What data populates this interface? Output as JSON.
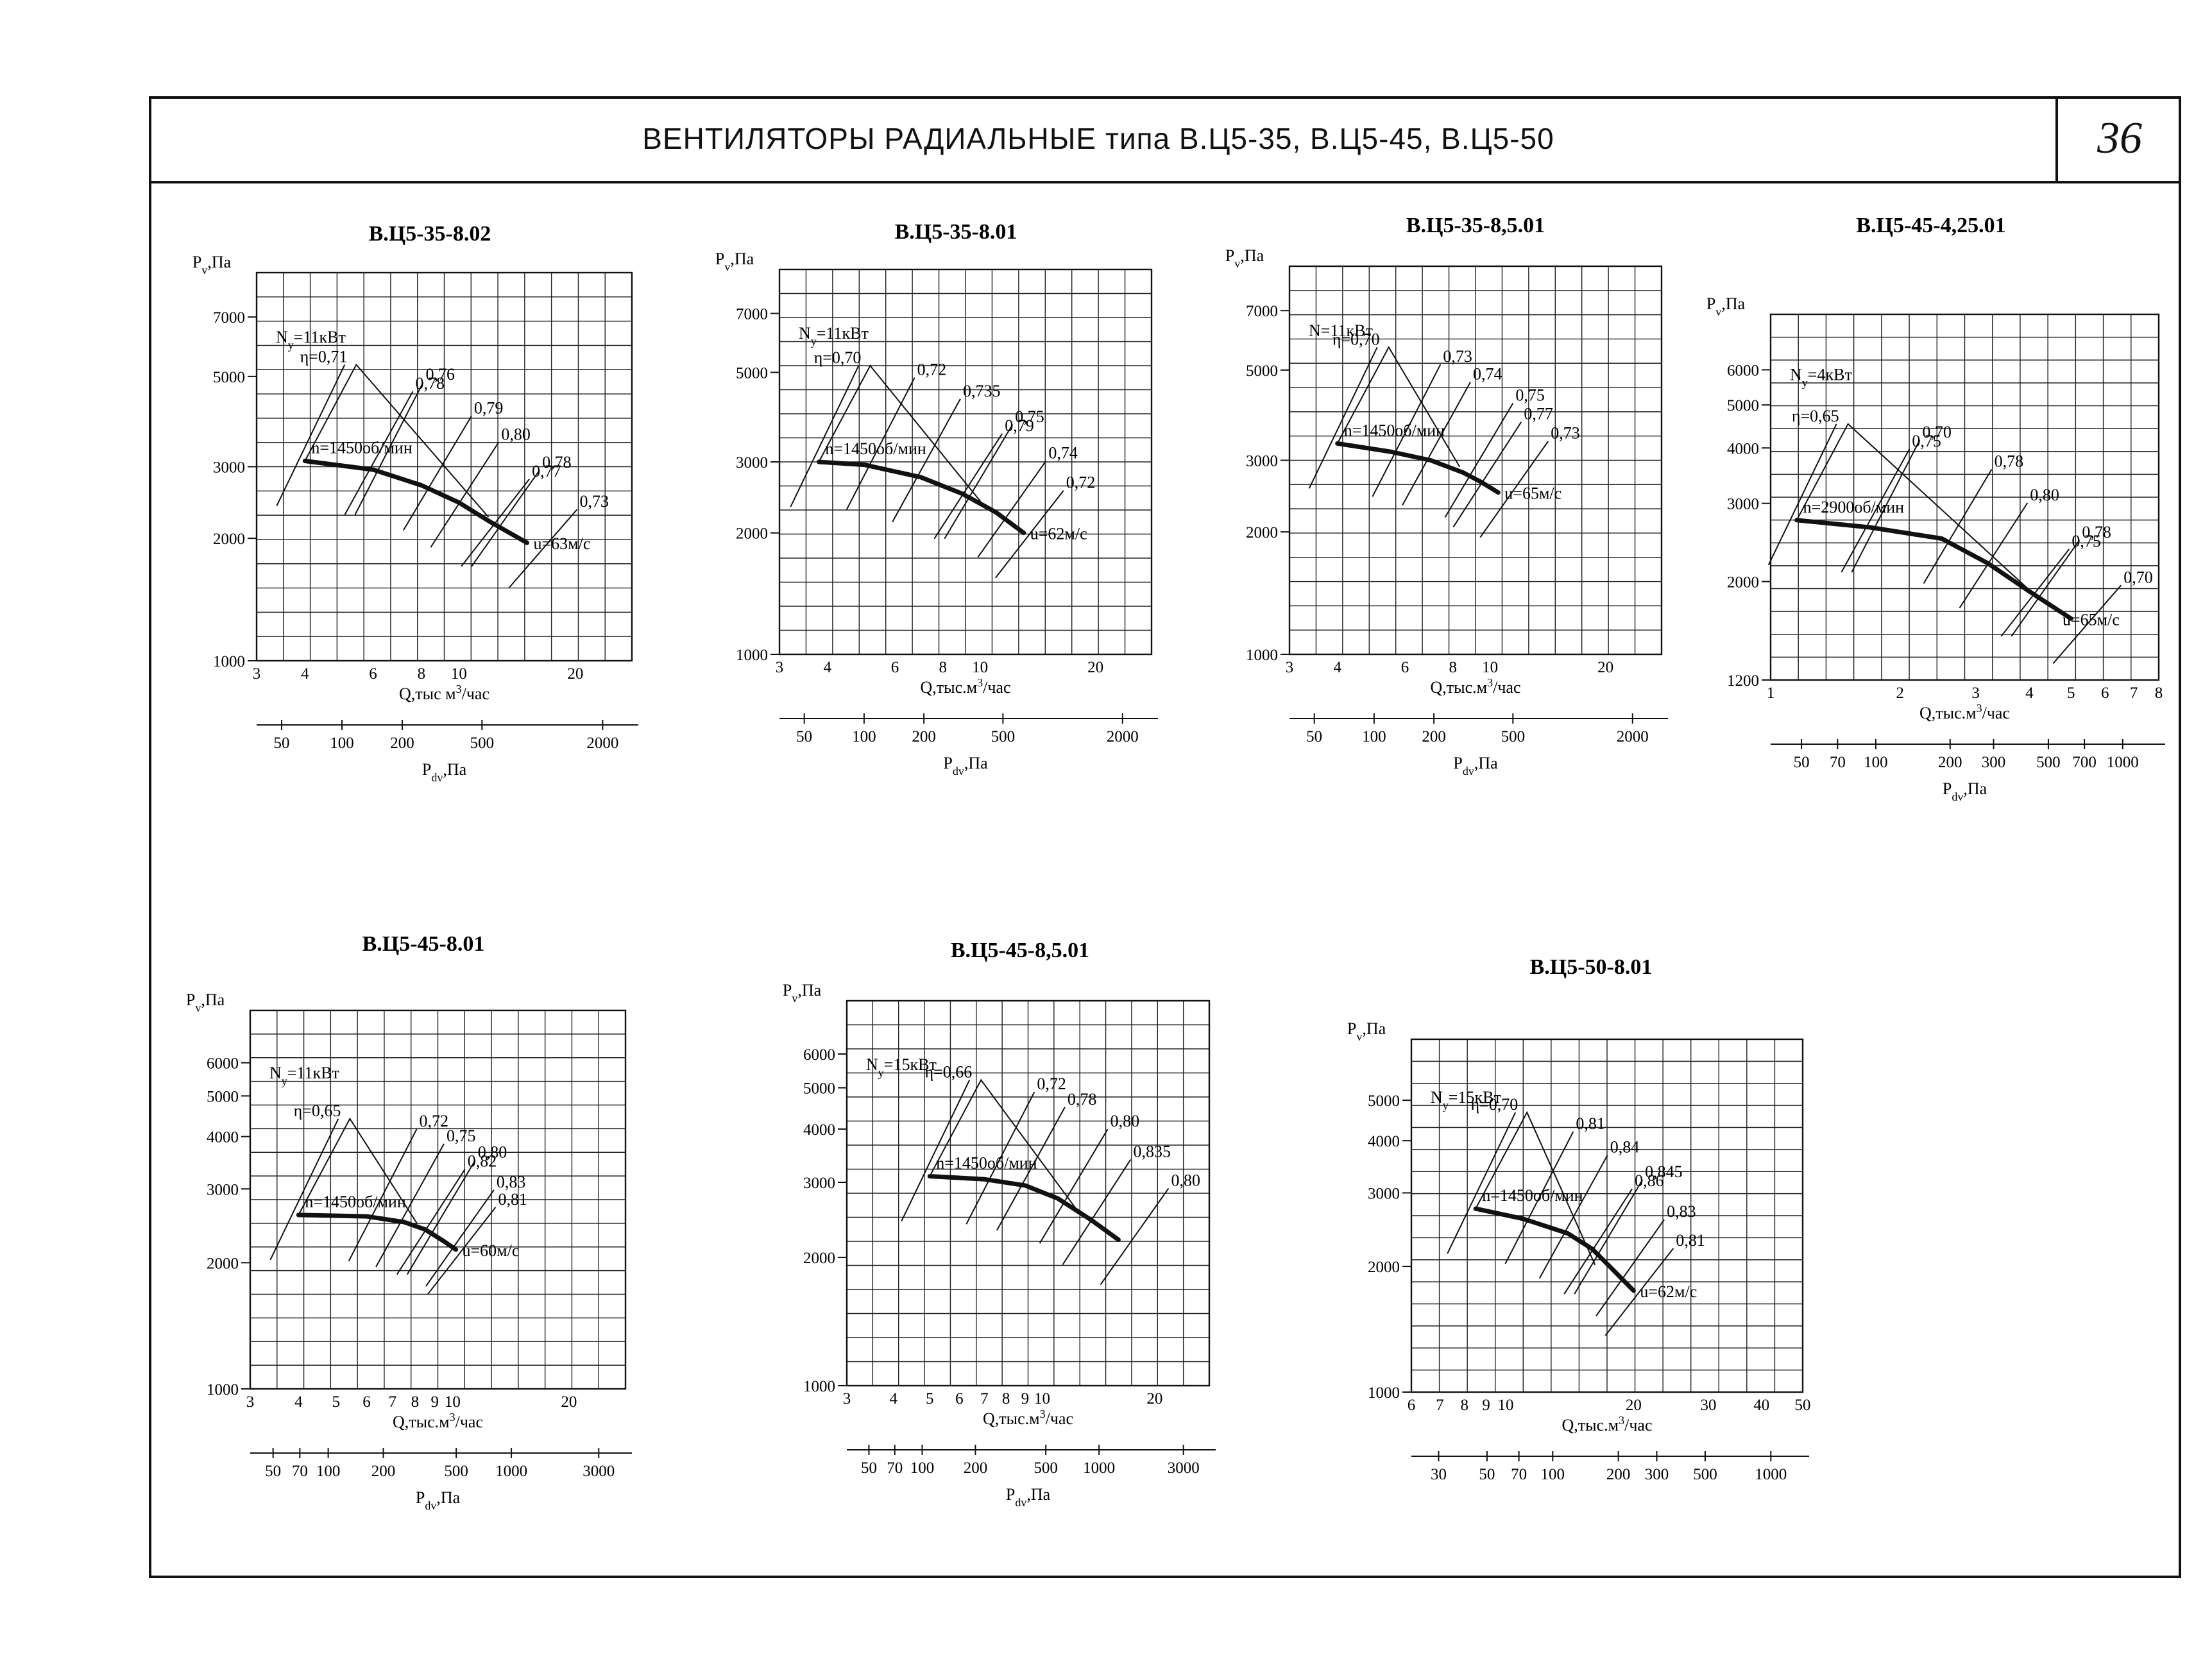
{
  "header": {
    "title": "ВЕНТИЛЯТОРЫ РАДИАЛЬНЫЕ типа В.Ц5-35, В.Ц5-45, В.Ц5-50",
    "page_number": "36"
  },
  "chart_data": [
    {
      "type": "line",
      "title": "В.Ц5-35-8.02",
      "xlabel": "Q,тыс м³/час",
      "ylabel": "Pv,Па",
      "x2label": "Pdv,Па",
      "x_scale": "log",
      "y_scale": "log",
      "xlim": [
        3,
        28
      ],
      "ylim": [
        1000,
        9000
      ],
      "xticks": [
        3,
        4,
        6,
        8,
        10,
        20
      ],
      "yticks": [
        1000,
        2000,
        3000,
        5000,
        7000
      ],
      "x2ticks": [
        50,
        100,
        200,
        500,
        2000
      ],
      "series": [
        {
          "points": [
            [
              4,
              3100
            ],
            [
              6,
              2950
            ],
            [
              8,
              2700
            ],
            [
              10,
              2450
            ],
            [
              12,
              2200
            ],
            [
              15,
              1950
            ]
          ]
        }
      ],
      "efficiency_labels": [
        "η=0,71",
        "0,76",
        "0,78",
        "0,79",
        "0,80",
        "0,78",
        "0,77",
        "0,73"
      ],
      "annotations": [
        "Ny=11кВт",
        "n=1450об/мин",
        "u=63м/с"
      ]
    },
    {
      "type": "line",
      "title": "В.Ц5-35-8.01",
      "xlabel": "Q,тыс.м³/час",
      "ylabel": "Pv,Па",
      "x2label": "Pdv,Па",
      "x_scale": "log",
      "y_scale": "log",
      "xlim": [
        3,
        28
      ],
      "ylim": [
        1000,
        9000
      ],
      "xticks": [
        3,
        4,
        6,
        8,
        10,
        20
      ],
      "yticks": [
        1000,
        2000,
        3000,
        5000,
        7000
      ],
      "x2ticks": [
        50,
        100,
        200,
        500,
        2000
      ],
      "series": [
        {
          "points": [
            [
              3.8,
              3000
            ],
            [
              5,
              2950
            ],
            [
              7,
              2750
            ],
            [
              9,
              2500
            ],
            [
              11,
              2250
            ],
            [
              13,
              2000
            ]
          ]
        }
      ],
      "efficiency_labels": [
        "η=0,70",
        "0,72",
        "0,735",
        "0,75",
        "0,79",
        "0,74",
        "0,72"
      ],
      "annotations": [
        "Ny=11кВт",
        "n=1450об/мин",
        "u=62м/с"
      ]
    },
    {
      "type": "line",
      "title": "В.Ц5-35-8,5.01",
      "xlabel": "Q,тыс.м³/час",
      "ylabel": "Pv,Па",
      "x2label": "Pdv,Па",
      "x_scale": "log",
      "y_scale": "log",
      "xlim": [
        3,
        28
      ],
      "ylim": [
        1000,
        9000
      ],
      "xticks": [
        3,
        4,
        6,
        8,
        10,
        20
      ],
      "yticks": [
        1000,
        2000,
        3000,
        5000,
        7000
      ],
      "x2ticks": [
        50,
        100,
        200,
        500,
        2000
      ],
      "series": [
        {
          "points": [
            [
              4,
              3300
            ],
            [
              5.5,
              3150
            ],
            [
              7,
              3000
            ],
            [
              8.5,
              2800
            ],
            [
              9.5,
              2650
            ],
            [
              10.5,
              2500
            ]
          ]
        }
      ],
      "efficiency_labels": [
        "η=0,70",
        "0,73",
        "0,74",
        "0,75",
        "0,77",
        "0,73"
      ],
      "annotations": [
        "N=11кВт",
        "n=1450об/мин",
        "u=65м/с"
      ]
    },
    {
      "type": "line",
      "title": "В.Ц5-45-4,25.01",
      "xlabel": "Q,тыс.м³/час",
      "ylabel": "Pv,Па",
      "x2label": "Pdv,Па",
      "x_scale": "log",
      "y_scale": "log",
      "xlim": [
        1,
        8
      ],
      "ylim": [
        1200,
        8000
      ],
      "xticks": [
        1,
        2,
        3,
        4,
        5,
        6,
        7,
        8
      ],
      "yticks": [
        1200,
        2000,
        3000,
        4000,
        5000,
        6000
      ],
      "x2ticks": [
        50,
        70,
        100,
        200,
        300,
        500,
        700,
        1000
      ],
      "series": [
        {
          "points": [
            [
              1.15,
              2750
            ],
            [
              1.7,
              2650
            ],
            [
              2.5,
              2500
            ],
            [
              3.2,
              2200
            ],
            [
              4,
              1900
            ],
            [
              5,
              1650
            ]
          ]
        }
      ],
      "efficiency_labels": [
        "η=0,65",
        "0,70",
        "0,75",
        "0,78",
        "0,80",
        "0,78",
        "0,75",
        "0,70"
      ],
      "annotations": [
        "Ny=4кВт",
        "n=2900об/мин",
        "u=65м/с"
      ]
    },
    {
      "type": "line",
      "title": "В.Ц5-45-8.01",
      "xlabel": "Q,тыс.м³/час",
      "ylabel": "Pv,Па",
      "x2label": "Pdv,Па",
      "x_scale": "log",
      "y_scale": "log",
      "xlim": [
        3,
        28
      ],
      "ylim": [
        1000,
        8000
      ],
      "xticks": [
        3,
        4,
        5,
        6,
        7,
        8,
        9,
        10,
        20
      ],
      "yticks": [
        1000,
        2000,
        3000,
        4000,
        5000,
        6000
      ],
      "x2ticks": [
        50,
        70,
        100,
        200,
        500,
        1000,
        3000
      ],
      "series": [
        {
          "points": [
            [
              4,
              2600
            ],
            [
              6,
              2580
            ],
            [
              7.5,
              2500
            ],
            [
              8.5,
              2400
            ],
            [
              9.5,
              2250
            ],
            [
              10.2,
              2150
            ]
          ]
        }
      ],
      "efficiency_labels": [
        "η=0,65",
        "0,72",
        "0,75",
        "0,80",
        "0,82",
        "0,83",
        "0,81"
      ],
      "annotations": [
        "Ny=11кВт",
        "n=1450об/мин",
        "u=60м/с"
      ]
    },
    {
      "type": "line",
      "title": "В.Ц5-45-8,5.01",
      "xlabel": "Q,тыс.м³/час",
      "ylabel": "Pv,Па",
      "x2label": "Pdv,Па",
      "x_scale": "log",
      "y_scale": "log",
      "xlim": [
        3,
        28
      ],
      "ylim": [
        1000,
        8000
      ],
      "xticks": [
        3,
        4,
        5,
        6,
        7,
        8,
        9,
        10,
        20
      ],
      "yticks": [
        1000,
        2000,
        3000,
        4000,
        5000,
        6000
      ],
      "x2ticks": [
        50,
        70,
        100,
        200,
        500,
        1000,
        3000
      ],
      "series": [
        {
          "points": [
            [
              5,
              3100
            ],
            [
              7,
              3050
            ],
            [
              9,
              2950
            ],
            [
              11,
              2750
            ],
            [
              13.5,
              2450
            ],
            [
              16,
              2200
            ]
          ]
        }
      ],
      "efficiency_labels": [
        "η=0,66",
        "0,72",
        "0,78",
        "0,80",
        "0,835",
        "0,80"
      ],
      "annotations": [
        "Ny=15кВт",
        "n=1450об/мин"
      ]
    },
    {
      "type": "line",
      "title": "В.Ц5-50-8.01",
      "xlabel": "Q,тыс.м³/час",
      "ylabel": "Pv,Па",
      "x_scale": "log",
      "y_scale": "log",
      "xlim": [
        6,
        50
      ],
      "ylim": [
        1000,
        7000
      ],
      "xticks": [
        6,
        7,
        8,
        9,
        10,
        20,
        30,
        40,
        50
      ],
      "yticks": [
        1000,
        2000,
        3000,
        4000,
        5000
      ],
      "x2ticks": [
        30,
        50,
        70,
        100,
        200,
        300,
        500,
        1000
      ],
      "series": [
        {
          "points": [
            [
              8.5,
              2750
            ],
            [
              11,
              2600
            ],
            [
              14,
              2400
            ],
            [
              16,
              2200
            ],
            [
              18,
              1950
            ],
            [
              20,
              1750
            ]
          ]
        }
      ],
      "efficiency_labels": [
        "η=0,70",
        "0,81",
        "0,84",
        "0,845",
        "0,86",
        "0,83",
        "0,81"
      ],
      "annotations": [
        "Ny=15кВт",
        "n=1450об/мин",
        "u=62м/с"
      ]
    }
  ]
}
